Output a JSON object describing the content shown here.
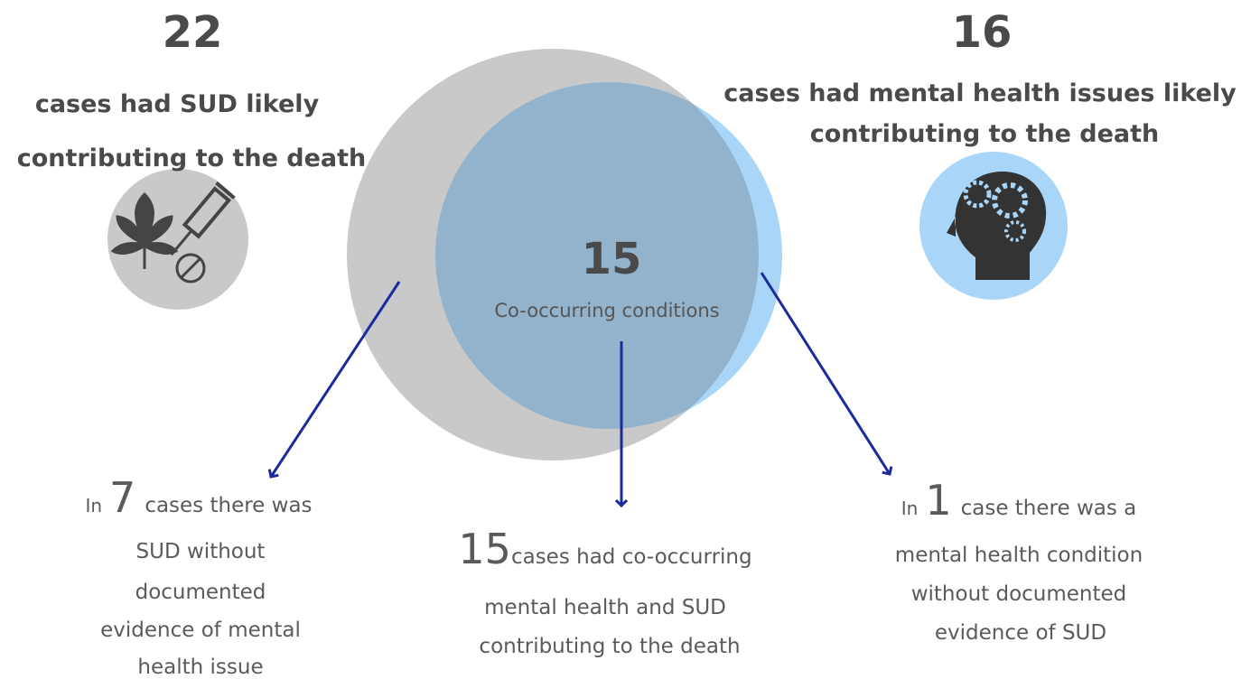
{
  "left": {
    "count": 22,
    "caption_lines": [
      "cases had SUD likely",
      "contributing to the death"
    ]
  },
  "right": {
    "count": 16,
    "caption_lines": [
      "cases had mental health issues likely",
      "contributing to the death"
    ]
  },
  "center": {
    "count": 15,
    "label": "Co-occurring conditions"
  },
  "notes": [
    {
      "prefix": "In",
      "count": 7,
      "lines": [
        "cases there was",
        "SUD without",
        "documented",
        "evidence of mental",
        "health issue"
      ]
    },
    {
      "count": 15,
      "lines": [
        "cases had co-occurring",
        "mental health and SUD",
        "contributing to the death"
      ]
    },
    {
      "prefix": "In",
      "count": 1,
      "lines": [
        "case there was a",
        "mental health condition",
        "without documented",
        "evidence of SUD"
      ]
    }
  ]
}
